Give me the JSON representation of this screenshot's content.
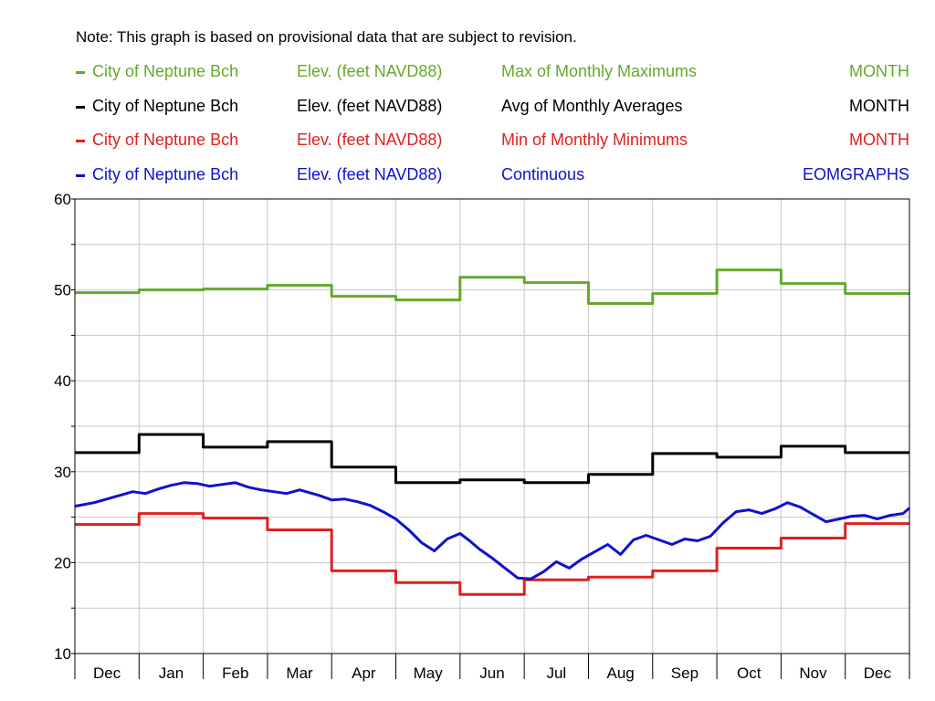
{
  "note": "Note: This graph is based on provisional data that are subject to revision.",
  "legend": [
    {
      "location": "City of Neptune Bch",
      "parameter": "Elev. (feet NAVD88)",
      "statistic": "Max of Monthly Maximums",
      "interval": "MONTH",
      "color": "#66a82e"
    },
    {
      "location": "City of Neptune Bch",
      "parameter": "Elev. (feet NAVD88)",
      "statistic": "Avg of Monthly Averages",
      "interval": "MONTH",
      "color": "#000000"
    },
    {
      "location": "City of Neptune Bch",
      "parameter": "Elev. (feet NAVD88)",
      "statistic": "Min of Monthly Minimums",
      "interval": "MONTH",
      "color": "#e02020"
    },
    {
      "location": "City of Neptune Bch",
      "parameter": "Elev. (feet NAVD88)",
      "statistic": "Continuous",
      "interval": "EOMGRAPHS",
      "color": "#1010d0"
    }
  ],
  "chart_data": {
    "type": "line",
    "categories": [
      "Dec",
      "Jan",
      "Feb",
      "Mar",
      "Apr",
      "May",
      "Jun",
      "Jul",
      "Aug",
      "Sep",
      "Oct",
      "Nov",
      "Dec"
    ],
    "ylim": [
      10,
      60
    ],
    "yticks": [
      "10",
      "20",
      "30",
      "40",
      "50",
      "60"
    ],
    "grid": true,
    "series": [
      {
        "name": "Max of Monthly Maximums",
        "color": "#66a82e",
        "step": true,
        "values": [
          49.7,
          50.0,
          50.1,
          50.5,
          49.3,
          48.9,
          51.4,
          50.8,
          48.5,
          49.6,
          52.2,
          50.7,
          49.6
        ]
      },
      {
        "name": "Avg of Monthly Averages",
        "color": "#000000",
        "step": true,
        "values": [
          32.1,
          34.1,
          32.7,
          33.3,
          30.5,
          28.8,
          29.1,
          28.8,
          29.7,
          32.0,
          31.6,
          32.8,
          32.1
        ]
      },
      {
        "name": "Min of Monthly Minimums",
        "color": "#e02020",
        "step": true,
        "values": [
          24.2,
          25.4,
          24.9,
          23.6,
          19.1,
          17.8,
          16.5,
          18.1,
          18.4,
          19.1,
          21.6,
          22.7,
          24.3
        ]
      },
      {
        "name": "Continuous",
        "color": "#1010d0",
        "step": false,
        "x": [
          0,
          0.3,
          0.6,
          0.9,
          1.1,
          1.3,
          1.5,
          1.7,
          1.9,
          2.1,
          2.3,
          2.5,
          2.7,
          2.9,
          3.1,
          3.3,
          3.5,
          3.8,
          4.0,
          4.2,
          4.4,
          4.6,
          4.8,
          5.0,
          5.2,
          5.4,
          5.6,
          5.8,
          6.0,
          6.15,
          6.3,
          6.5,
          6.7,
          6.9,
          7.1,
          7.3,
          7.5,
          7.7,
          7.9,
          8.1,
          8.3,
          8.5,
          8.7,
          8.9,
          9.1,
          9.3,
          9.5,
          9.7,
          9.9,
          10.1,
          10.3,
          10.5,
          10.7,
          10.9,
          11.1,
          11.3,
          11.5,
          11.7,
          11.9,
          12.1,
          12.3,
          12.5,
          12.7,
          12.9,
          13.0
        ],
        "values": [
          26.2,
          26.6,
          27.2,
          27.8,
          27.6,
          28.1,
          28.5,
          28.8,
          28.7,
          28.4,
          28.6,
          28.8,
          28.3,
          28.0,
          27.8,
          27.6,
          28.0,
          27.4,
          26.9,
          27.0,
          26.7,
          26.3,
          25.6,
          24.8,
          23.6,
          22.2,
          21.3,
          22.6,
          23.2,
          22.4,
          21.5,
          20.5,
          19.4,
          18.3,
          18.2,
          19.0,
          20.1,
          19.4,
          20.4,
          21.2,
          22.0,
          20.9,
          22.5,
          23.0,
          22.5,
          22.0,
          22.6,
          22.4,
          22.9,
          24.4,
          25.6,
          25.8,
          25.4,
          25.9,
          26.6,
          26.1,
          25.3,
          24.5,
          24.8,
          25.1,
          25.2,
          24.8,
          25.2,
          25.4,
          26.0
        ]
      }
    ]
  }
}
